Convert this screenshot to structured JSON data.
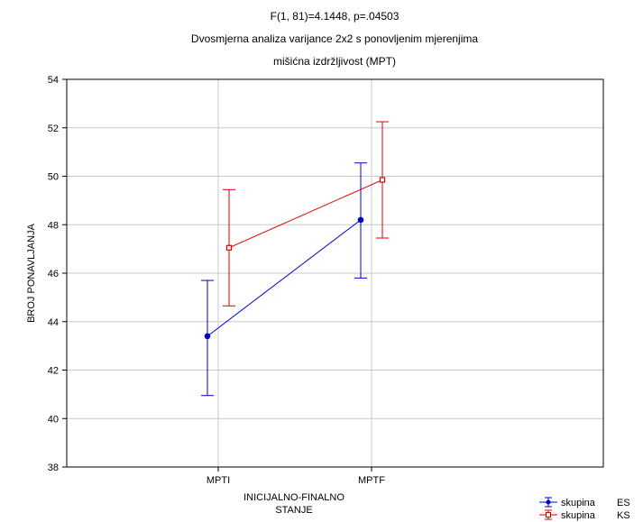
{
  "chart_data": {
    "type": "line",
    "title_lines": [
      "F(1, 81)=4.1448, p=.04503",
      "Dvosmjerna analiza varijance 2x2 s ponovljenim mjerenjima",
      "mišićna izdržljivost (MPT)"
    ],
    "xlabel_lines": [
      "INICIJALNO-FINALNO",
      "STANJE"
    ],
    "ylabel": "BROJ PONAVLJANJA",
    "categories": [
      "MPTI",
      "MPTF"
    ],
    "ylim": [
      38,
      54
    ],
    "yticks": [
      38,
      40,
      42,
      44,
      46,
      48,
      50,
      52,
      54
    ],
    "grid": true,
    "legend_position": "bottom-right",
    "series": [
      {
        "legend_prefix": "skupina",
        "name": "ES",
        "color": "#0000cc",
        "marker": "circle",
        "values": [
          43.4,
          48.2
        ],
        "lower": [
          40.95,
          45.8
        ],
        "upper": [
          45.7,
          50.55
        ]
      },
      {
        "legend_prefix": "skupina",
        "name": "KS",
        "color": "#dd0000",
        "marker": "square",
        "values": [
          47.05,
          49.85
        ],
        "lower": [
          44.65,
          47.45
        ],
        "upper": [
          49.45,
          52.25
        ]
      }
    ]
  }
}
